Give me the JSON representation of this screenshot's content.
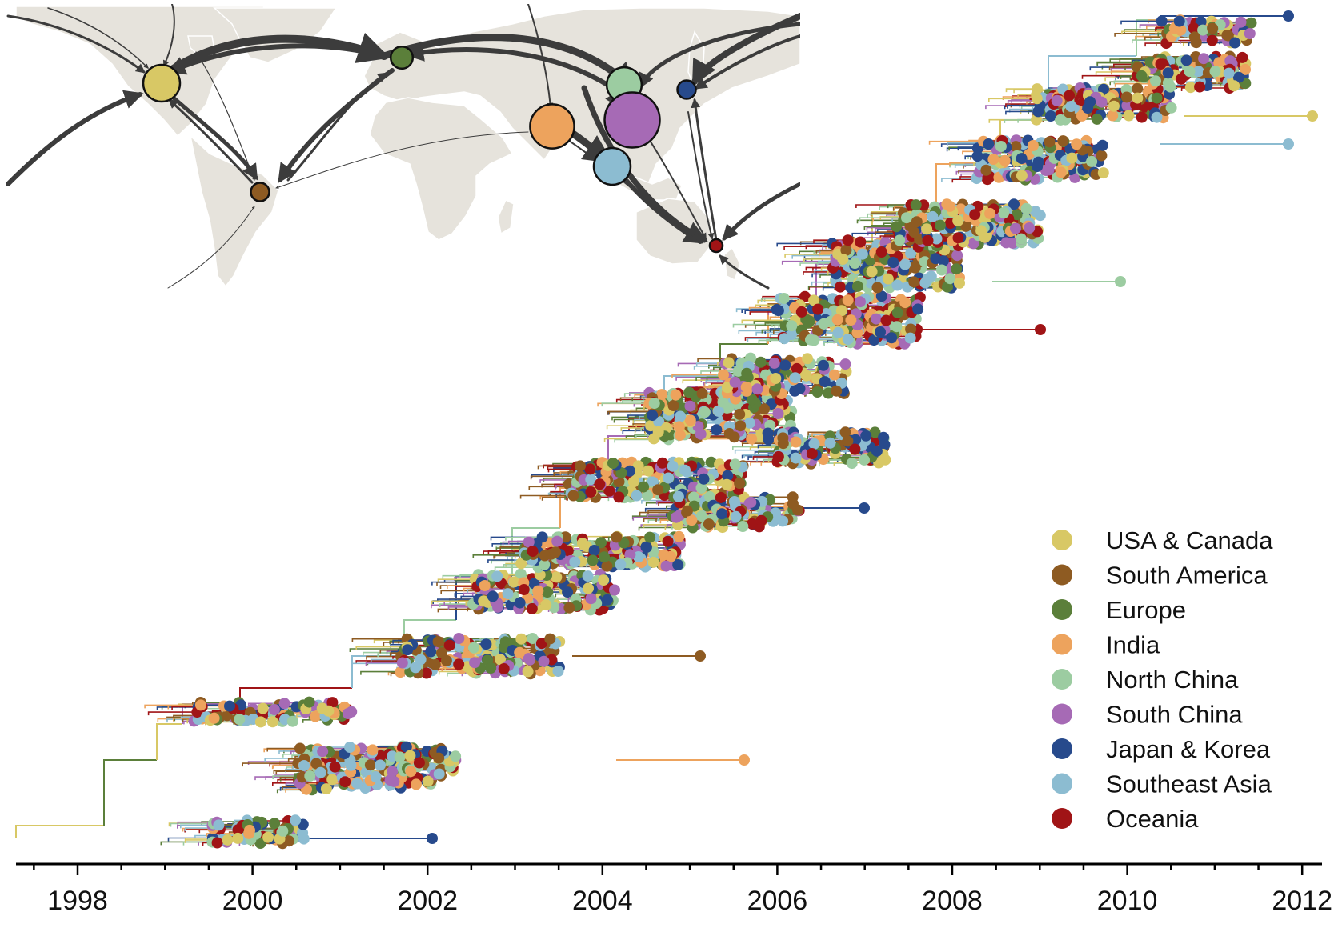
{
  "axis": {
    "ticks": [
      "1998",
      "2000",
      "2002",
      "2004",
      "2006",
      "2008",
      "2010",
      "2012"
    ],
    "tick_years": [
      1998,
      2000,
      2002,
      2004,
      2006,
      2008,
      2010,
      2012
    ],
    "range_years": [
      1997.3,
      2012.3
    ]
  },
  "legend": {
    "items": [
      {
        "label": "USA & Canada",
        "color": "#d8c865"
      },
      {
        "label": "South America",
        "color": "#8e5b22"
      },
      {
        "label": "Europe",
        "color": "#5b7f3a"
      },
      {
        "label": "India",
        "color": "#eda35d"
      },
      {
        "label": "North China",
        "color": "#9ccca1"
      },
      {
        "label": "South China",
        "color": "#a66ab5"
      },
      {
        "label": "Japan & Korea",
        "color": "#274a8c"
      },
      {
        "label": "Southeast Asia",
        "color": "#8cbcd1"
      },
      {
        "label": "Oceania",
        "color": "#a01416"
      }
    ]
  },
  "map": {
    "land_color": "#e6e3dc",
    "arrow_color": "#3c3c3c",
    "nodes": [
      {
        "region": "USA & Canada",
        "color": "#d8c865",
        "relative_size": 1.0
      },
      {
        "region": "Europe",
        "color": "#5b7f3a",
        "relative_size": 0.6
      },
      {
        "region": "North China",
        "color": "#9ccca1",
        "relative_size": 0.95
      },
      {
        "region": "Japan & Korea",
        "color": "#274a8c",
        "relative_size": 0.5
      },
      {
        "region": "India",
        "color": "#eda35d",
        "relative_size": 1.2
      },
      {
        "region": "South China",
        "color": "#a66ab5",
        "relative_size": 1.5
      },
      {
        "region": "Southeast Asia",
        "color": "#8cbcd1",
        "relative_size": 1.0
      },
      {
        "region": "South America",
        "color": "#8e5b22",
        "relative_size": 0.5
      },
      {
        "region": "Oceania",
        "color": "#a01416",
        "relative_size": 0.35
      }
    ]
  }
}
